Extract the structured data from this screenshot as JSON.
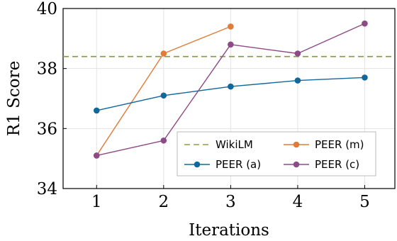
{
  "chart_data": {
    "type": "line",
    "xlabel": "Iterations",
    "ylabel": "R1 Score",
    "x": [
      1,
      2,
      3,
      4,
      5
    ],
    "xlim": [
      0.5,
      5.45
    ],
    "ylim": [
      34,
      40
    ],
    "xticks": [
      "1",
      "2",
      "3",
      "4",
      "5"
    ],
    "yticks": [
      "34",
      "36",
      "38",
      "40"
    ],
    "grid": true,
    "legend_position": "lower-right",
    "series": [
      {
        "name": "WikiLM",
        "style": "dashed",
        "color": "#8aa048",
        "marker": "none",
        "x": [
          0.5,
          5.45
        ],
        "values": [
          38.4,
          38.4
        ]
      },
      {
        "name": "PEER (m)",
        "style": "solid",
        "color": "#e07b39",
        "marker": "circle",
        "x": [
          1,
          2,
          3
        ],
        "values": [
          35.1,
          38.5,
          39.4
        ]
      },
      {
        "name": "PEER (a)",
        "style": "solid",
        "color": "#10689b",
        "marker": "circle",
        "x": [
          1,
          2,
          3,
          4,
          5
        ],
        "values": [
          36.6,
          37.1,
          37.4,
          37.6,
          37.7
        ]
      },
      {
        "name": "PEER (c)",
        "style": "solid",
        "color": "#8c4a87",
        "marker": "circle",
        "x": [
          1,
          2,
          3,
          4,
          5
        ],
        "values": [
          35.1,
          35.6,
          38.8,
          38.5,
          39.5
        ]
      }
    ],
    "legend_order": [
      "WikiLM",
      "PEER (m)",
      "PEER (a)",
      "PEER (c)"
    ]
  }
}
